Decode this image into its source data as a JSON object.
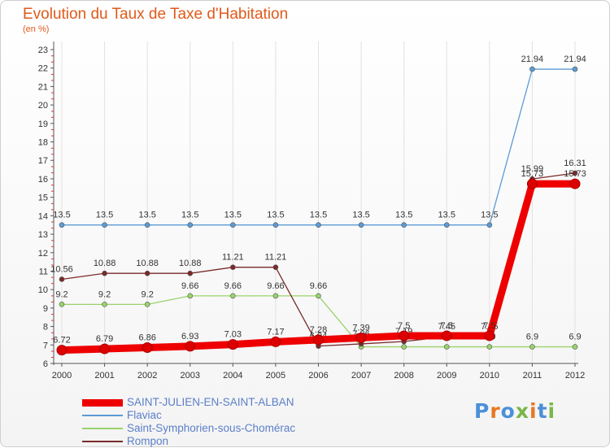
{
  "title": "Evolution du Taux de Taxe d'Habitation",
  "unit_label": "(en %)",
  "brand": {
    "text": "Proxiti",
    "colors": [
      "#4a90d9",
      "#e87722",
      "#4a90d9",
      "#7ab648",
      "#e87722",
      "#4a90d9",
      "#7ab648"
    ]
  },
  "chart_data": {
    "type": "line",
    "title": "Evolution du Taux de Taxe d'Habitation",
    "ylabel": "(en %)",
    "xlabel": "",
    "x": [
      2000,
      2001,
      2002,
      2003,
      2004,
      2005,
      2006,
      2007,
      2008,
      2009,
      2010,
      2011,
      2012
    ],
    "ylim": [
      6,
      23
    ],
    "yticks": [
      6,
      7,
      8,
      9,
      10,
      11,
      12,
      13,
      14,
      15,
      16,
      17,
      18,
      19,
      20,
      21,
      22,
      23
    ],
    "grid": "vertical",
    "legend_position": "bottom-left",
    "series": [
      {
        "name": "SAINT-JULIEN-EN-SAINT-ALBAN",
        "color": "#ee0000",
        "emphasis": true,
        "values": [
          6.72,
          6.79,
          6.86,
          6.93,
          7.03,
          7.17,
          7.28,
          7.39,
          7.5,
          7.5,
          7.5,
          15.73,
          15.73
        ],
        "labels": [
          "6.72",
          "6.79",
          "6.86",
          "6.93",
          "7.03",
          "7.17",
          "7.28",
          "7.39",
          "7.5",
          "7.5",
          "7.5",
          "15.73",
          "15.73"
        ]
      },
      {
        "name": "Flaviac",
        "color": "#5b9bd5",
        "values": [
          13.5,
          13.5,
          13.5,
          13.5,
          13.5,
          13.5,
          13.5,
          13.5,
          13.5,
          13.5,
          13.5,
          21.94,
          21.94
        ],
        "labels": [
          "13.5",
          "13.5",
          "13.5",
          "13.5",
          "13.5",
          "13.5",
          "13.5",
          "13.5",
          "13.5",
          "13.5",
          "13.5",
          "21.94",
          "21.94"
        ]
      },
      {
        "name": "Saint-Symphorien-sous-Chomérac",
        "color": "#99d36b",
        "values": [
          9.2,
          9.2,
          9.2,
          9.66,
          9.66,
          9.66,
          9.66,
          6.9,
          6.9,
          6.9,
          6.9,
          6.9,
          6.9
        ],
        "labels": [
          "9.2",
          "9.2",
          "9.2",
          "9.66",
          "9.66",
          "9.66",
          "9.66",
          "6.9",
          "6.9",
          "6.9",
          "6.9",
          "6.9",
          "6.9"
        ]
      },
      {
        "name": "Rompon",
        "color": "#7a2a2a",
        "values": [
          10.56,
          10.88,
          10.88,
          10.88,
          11.21,
          11.21,
          6.94,
          7.06,
          7.19,
          7.45,
          7.45,
          15.99,
          16.31
        ],
        "labels": [
          "10.56",
          "10.88",
          "10.88",
          "10.88",
          "11.21",
          "11.21",
          "6.94",
          "7.06",
          "7.19",
          "7.45",
          "7.45",
          "15.99",
          "16.31"
        ]
      }
    ]
  }
}
